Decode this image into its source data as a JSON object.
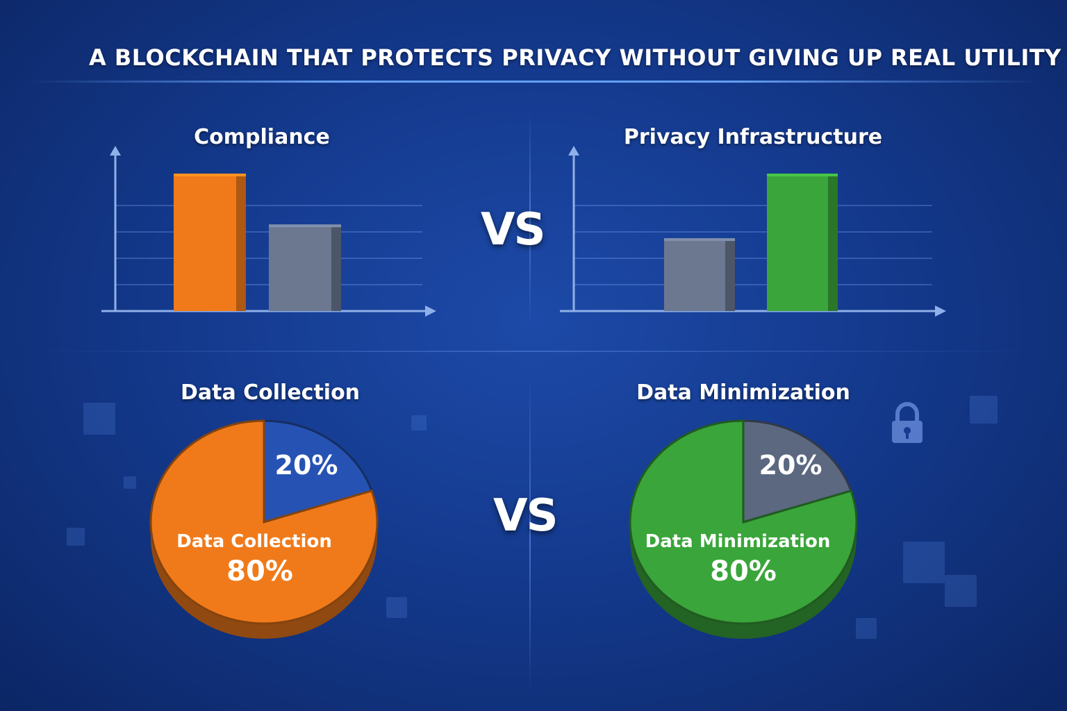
{
  "title": "A BLOCKCHAIN THAT PROTECTS PRIVACY WITHOUT GIVING UP REAL UTILITY",
  "vs_label": "VS",
  "icons": {
    "lock": "lock-icon"
  },
  "colors": {
    "orange": "#f07a1a",
    "gray": "#6b7890",
    "green": "#3aa53a",
    "blue": "#2653b3"
  },
  "chart_data": [
    {
      "type": "bar",
      "title": "Compliance",
      "categories": [
        "",
        ""
      ],
      "values": [
        100,
        63
      ],
      "colors": [
        "#f07a1a",
        "#6b7890"
      ],
      "ylim": [
        0,
        100
      ],
      "grid": true
    },
    {
      "type": "bar",
      "title": "Privacy Infrastructure",
      "categories": [
        "",
        ""
      ],
      "values": [
        53,
        100
      ],
      "colors": [
        "#6b7890",
        "#3aa53a"
      ],
      "ylim": [
        0,
        100
      ],
      "grid": true
    },
    {
      "type": "pie",
      "title": "Data Collection",
      "slices": [
        {
          "label": "Data Collection",
          "value": 80,
          "value_label": "80%",
          "color": "#f07a1a"
        },
        {
          "label": "",
          "value": 20,
          "value_label": "20%",
          "color": "#2653b3"
        }
      ]
    },
    {
      "type": "pie",
      "title": "Data Minimization",
      "slices": [
        {
          "label": "Data Minimization",
          "value": 80,
          "value_label": "80%",
          "color": "#3aa53a"
        },
        {
          "label": "",
          "value": 20,
          "value_label": "20%",
          "color": "#5b6880"
        }
      ]
    }
  ]
}
